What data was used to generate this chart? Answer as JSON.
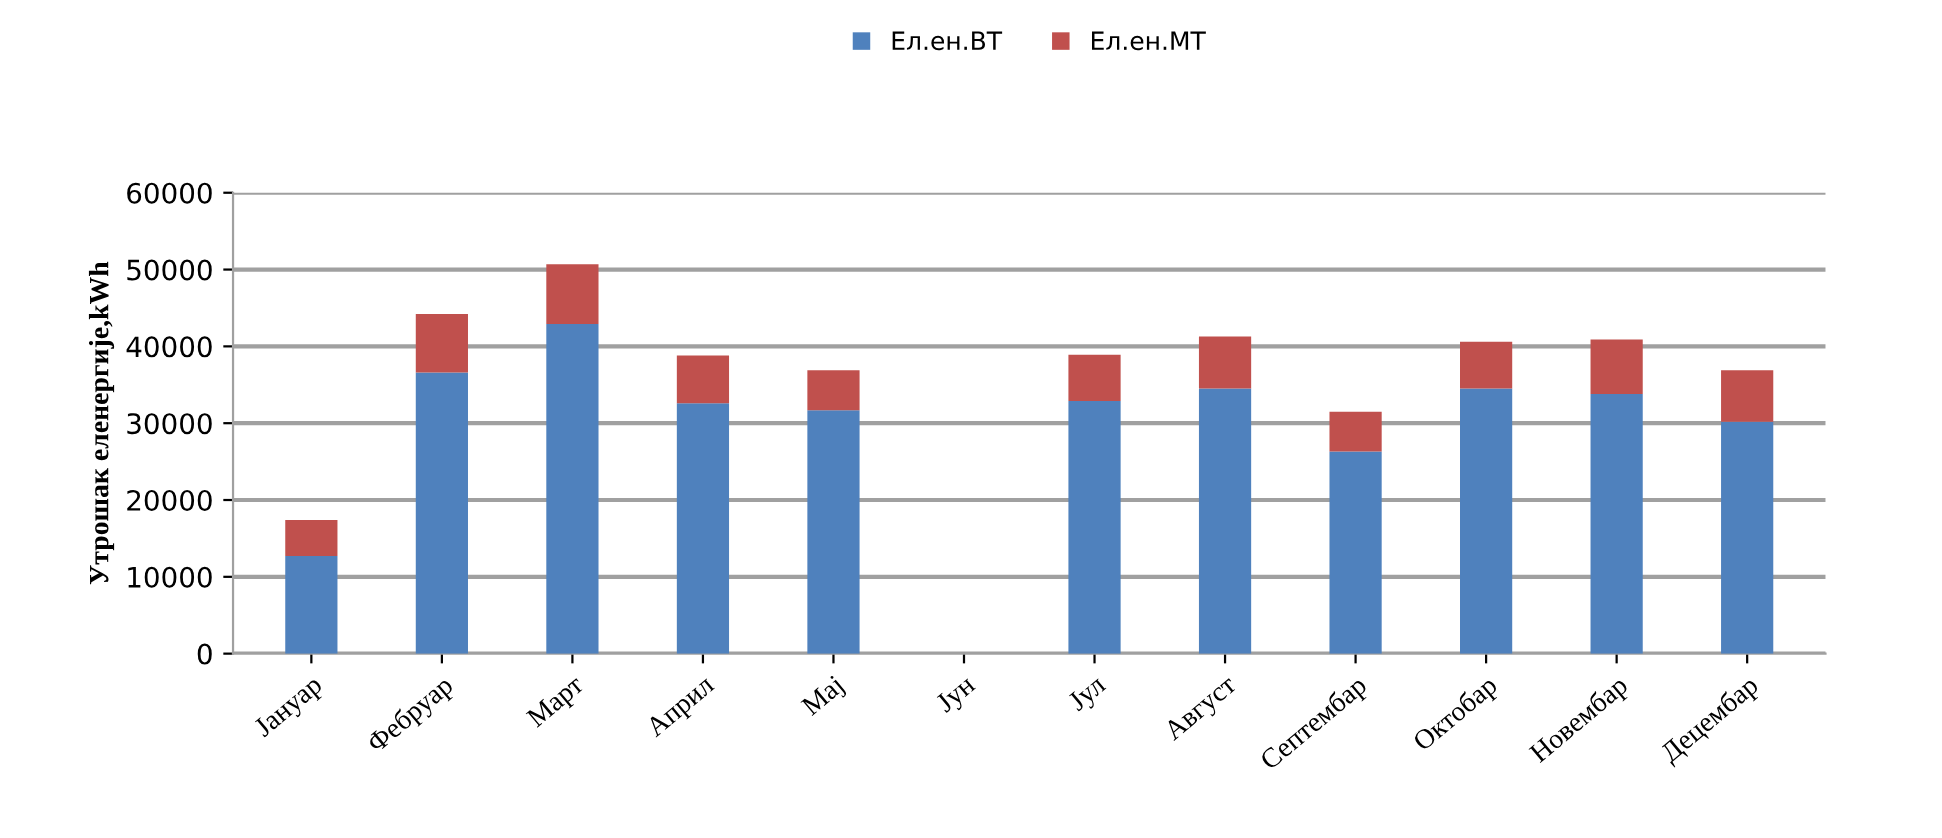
{
  "chart_data": {
    "type": "bar",
    "stacked": true,
    "ylabel": "Утрошак еленергије,kWh",
    "categories": [
      "Јануар",
      "Фебруар",
      "Март",
      "Април",
      "Мај",
      "Јун",
      "Јул",
      "Август",
      "Септембар",
      "Октобар",
      "Новембар",
      "Децембар"
    ],
    "series": [
      {
        "name": "Ел.ен.ВТ",
        "color": "#4f81bd",
        "values": [
          12700,
          36600,
          42900,
          32600,
          31700,
          null,
          32900,
          34500,
          26300,
          34500,
          33800,
          30200
        ]
      },
      {
        "name": "Ел.ен.МТ",
        "color": "#c0504d",
        "values": [
          4700,
          7600,
          7800,
          6200,
          5200,
          null,
          6000,
          6800,
          5200,
          6100,
          7100,
          6700
        ]
      }
    ],
    "ylim": [
      0,
      60000
    ],
    "yticks": [
      0,
      10000,
      20000,
      30000,
      40000,
      50000,
      60000
    ],
    "grid": "y",
    "legend": "top"
  }
}
